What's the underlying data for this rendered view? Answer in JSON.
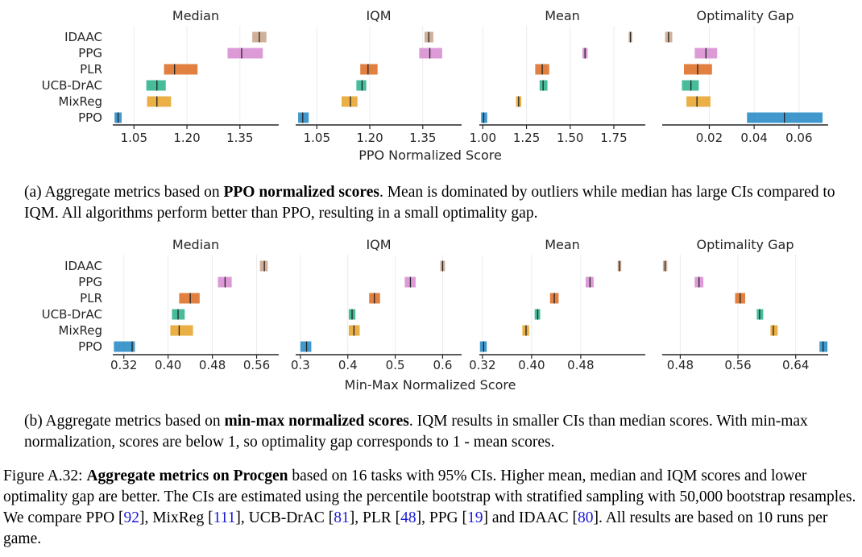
{
  "algorithms": [
    "IDAAC",
    "PPG",
    "PLR",
    "UCB-DrAC",
    "MixReg",
    "PPO"
  ],
  "colors": {
    "IDAAC": "#c8a287",
    "PPG": "#d68ad0",
    "PLR": "#dc6a1e",
    "UCB-DrAC": "#27b08a",
    "MixReg": "#e6a125",
    "PPO": "#1f86c4"
  },
  "chart_data": [
    {
      "type": "interval",
      "xlabel": "PPO Normalized Score",
      "panels": [
        {
          "title": "Median",
          "xlim": [
            0.99,
            1.46
          ],
          "ticks": [
            1.05,
            1.2,
            1.35
          ],
          "tick_labels": [
            "1.05",
            "1.20",
            "1.35"
          ],
          "intervals": {
            "IDAAC": {
              "lo": 1.385,
              "hi": 1.425,
              "point": 1.405
            },
            "PPG": {
              "lo": 1.315,
              "hi": 1.415,
              "point": 1.355
            },
            "PLR": {
              "lo": 1.135,
              "hi": 1.23,
              "point": 1.165
            },
            "UCB-DrAC": {
              "lo": 1.085,
              "hi": 1.14,
              "point": 1.115
            },
            "MixReg": {
              "lo": 1.087,
              "hi": 1.155,
              "point": 1.115
            },
            "PPO": {
              "lo": 0.995,
              "hi": 1.015,
              "point": 1.005
            }
          }
        },
        {
          "title": "IQM",
          "xlim": [
            0.99,
            1.46
          ],
          "ticks": [
            1.05,
            1.2,
            1.35
          ],
          "tick_labels": [
            "1.05",
            "1.20",
            "1.35"
          ],
          "intervals": {
            "IDAAC": {
              "lo": 1.355,
              "hi": 1.38,
              "point": 1.367
            },
            "PPG": {
              "lo": 1.34,
              "hi": 1.405,
              "point": 1.37
            },
            "PLR": {
              "lo": 1.173,
              "hi": 1.222,
              "point": 1.195
            },
            "UCB-DrAC": {
              "lo": 1.162,
              "hi": 1.19,
              "point": 1.178
            },
            "MixReg": {
              "lo": 1.12,
              "hi": 1.165,
              "point": 1.145
            },
            "PPO": {
              "lo": 0.997,
              "hi": 1.027,
              "point": 1.01
            }
          }
        },
        {
          "title": "Mean",
          "xlim": [
            0.98,
            1.93
          ],
          "ticks": [
            1.0,
            1.25,
            1.5,
            1.75
          ],
          "tick_labels": [
            "1.00",
            "1.25",
            "1.50",
            "1.75"
          ],
          "intervals": {
            "IDAAC": {
              "lo": 1.835,
              "hi": 1.855,
              "point": 1.845
            },
            "PPG": {
              "lo": 1.57,
              "hi": 1.6,
              "point": 1.585
            },
            "PLR": {
              "lo": 1.3,
              "hi": 1.38,
              "point": 1.34
            },
            "UCB-DrAC": {
              "lo": 1.325,
              "hi": 1.37,
              "point": 1.345
            },
            "MixReg": {
              "lo": 1.19,
              "hi": 1.22,
              "point": 1.205
            },
            "PPO": {
              "lo": 0.99,
              "hi": 1.025,
              "point": 1.005
            }
          }
        },
        {
          "title": "Optimality Gap",
          "xlim": [
            -0.001,
            0.073
          ],
          "ticks": [
            0.02,
            0.04,
            0.06
          ],
          "tick_labels": [
            "0.02",
            "0.04",
            "0.06"
          ],
          "intervals": {
            "IDAAC": {
              "lo": 0.0003,
              "hi": 0.0035,
              "point": 0.0018
            },
            "PPG": {
              "lo": 0.0135,
              "hi": 0.0235,
              "point": 0.0185
            },
            "PLR": {
              "lo": 0.0087,
              "hi": 0.0212,
              "point": 0.0148
            },
            "UCB-DrAC": {
              "lo": 0.0078,
              "hi": 0.0153,
              "point": 0.0118
            },
            "MixReg": {
              "lo": 0.0098,
              "hi": 0.0205,
              "point": 0.0145
            },
            "PPO": {
              "lo": 0.0368,
              "hi": 0.0705,
              "point": 0.0535
            }
          }
        }
      ]
    },
    {
      "type": "interval",
      "xlabel": "Min-Max Normalized Score",
      "panels": [
        {
          "title": "Median",
          "xlim": [
            0.3,
            0.6
          ],
          "ticks": [
            0.32,
            0.4,
            0.48,
            0.56
          ],
          "tick_labels": [
            "0.32",
            "0.40",
            "0.48",
            "0.56"
          ],
          "intervals": {
            "IDAAC": {
              "lo": 0.566,
              "hi": 0.58,
              "point": 0.574
            },
            "PPG": {
              "lo": 0.49,
              "hi": 0.515,
              "point": 0.503
            },
            "PLR": {
              "lo": 0.42,
              "hi": 0.457,
              "point": 0.44
            },
            "UCB-DrAC": {
              "lo": 0.407,
              "hi": 0.43,
              "point": 0.418
            },
            "MixReg": {
              "lo": 0.404,
              "hi": 0.445,
              "point": 0.42
            },
            "PPO": {
              "lo": 0.302,
              "hi": 0.34,
              "point": 0.335
            }
          }
        },
        {
          "title": "IQM",
          "xlim": [
            0.29,
            0.64
          ],
          "ticks": [
            0.3,
            0.4,
            0.5,
            0.6
          ],
          "tick_labels": [
            "0.3",
            "0.4",
            "0.5",
            "0.6"
          ],
          "intervals": {
            "IDAAC": {
              "lo": 0.595,
              "hi": 0.605,
              "point": 0.6
            },
            "PPG": {
              "lo": 0.52,
              "hi": 0.543,
              "point": 0.532
            },
            "PLR": {
              "lo": 0.445,
              "hi": 0.468,
              "point": 0.456
            },
            "UCB-DrAC": {
              "lo": 0.402,
              "hi": 0.416,
              "point": 0.409
            },
            "MixReg": {
              "lo": 0.402,
              "hi": 0.425,
              "point": 0.413
            },
            "PPO": {
              "lo": 0.3,
              "hi": 0.323,
              "point": 0.313
            }
          }
        },
        {
          "title": "Mean",
          "xlim": [
            0.315,
            0.585
          ],
          "ticks": [
            0.32,
            0.4,
            0.48
          ],
          "tick_labels": [
            "0.32",
            "0.40",
            "0.48"
          ],
          "intervals": {
            "IDAAC": {
              "lo": 0.54,
              "hi": 0.546,
              "point": 0.543
            },
            "PPG": {
              "lo": 0.488,
              "hi": 0.501,
              "point": 0.495
            },
            "PLR": {
              "lo": 0.43,
              "hi": 0.444,
              "point": 0.437
            },
            "UCB-DrAC": {
              "lo": 0.405,
              "hi": 0.414,
              "point": 0.41
            },
            "MixReg": {
              "lo": 0.385,
              "hi": 0.396,
              "point": 0.391
            },
            "PPO": {
              "lo": 0.316,
              "hi": 0.327,
              "point": 0.322
            }
          }
        },
        {
          "title": "Optimality Gap",
          "xlim": [
            0.455,
            0.685
          ],
          "ticks": [
            0.48,
            0.56,
            0.64
          ],
          "tick_labels": [
            "0.48",
            "0.56",
            "0.64"
          ],
          "intervals": {
            "IDAAC": {
              "lo": 0.456,
              "hi": 0.462,
              "point": 0.459
            },
            "PPG": {
              "lo": 0.5,
              "hi": 0.512,
              "point": 0.506
            },
            "PLR": {
              "lo": 0.556,
              "hi": 0.57,
              "point": 0.563
            },
            "UCB-DrAC": {
              "lo": 0.586,
              "hi": 0.595,
              "point": 0.59
            },
            "MixReg": {
              "lo": 0.605,
              "hi": 0.615,
              "point": 0.609
            },
            "PPO": {
              "lo": 0.673,
              "hi": 0.684,
              "point": 0.678
            }
          }
        }
      ]
    }
  ],
  "captions": {
    "a": {
      "prefix": "(a) Aggregate metrics based on ",
      "bold": "PPO normalized scores",
      "rest": ". Mean is dominated by outliers while median has large CIs compared to IQM. All algorithms perform better than PPO, resulting in a small optimality gap."
    },
    "b": {
      "prefix": "(b) Aggregate metrics based on ",
      "bold": "min-max normalized scores",
      "rest": ". IQM results in smaller CIs than median scores. With min-max normalization, scores are below 1, so optimality gap corresponds to 1 - mean scores."
    },
    "figure": {
      "label": "Figure A.32: ",
      "bold": "Aggregate metrics on Procgen",
      "t1": " based on 16 tasks with 95% CIs. Higher mean, median and IQM scores and lower optimality gap are better. The CIs are estimated using the percentile bootstrap with stratified sampling with 50,000 bootstrap resamples. We compare PPO [",
      "r1": "92",
      "t2": "], MixReg [",
      "r2": "111",
      "t3": "], UCB-DrAC [",
      "r3": "81",
      "t4": "], PLR [",
      "r4": "48",
      "t5": "], PPG [",
      "r5": "19",
      "t6": "] and IDAAC [",
      "r6": "80",
      "t7": "]. All results are based on 10 runs per game."
    }
  }
}
